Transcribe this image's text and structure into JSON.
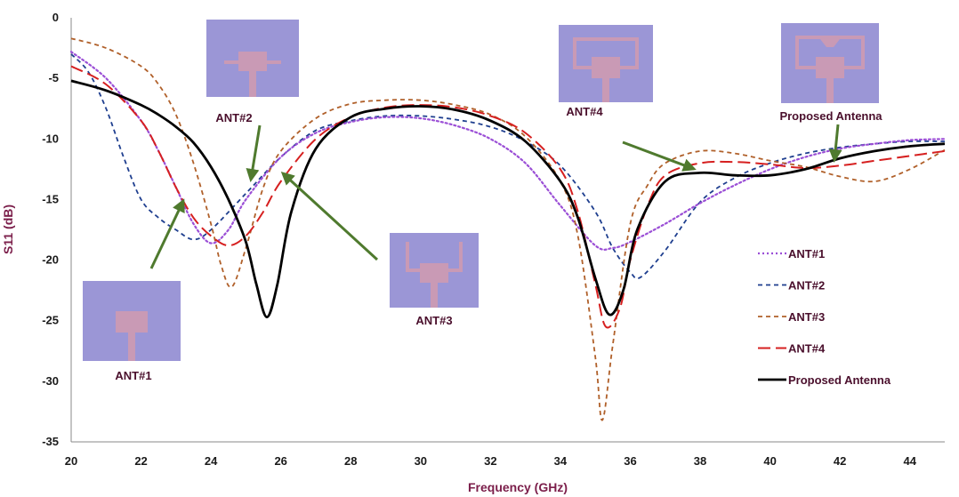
{
  "chart_data": {
    "type": "line",
    "xlabel": "Frequency (GHz)",
    "ylabel": "S11 (dB)",
    "xlim": [
      20,
      45
    ],
    "ylim": [
      -35,
      0
    ],
    "xticks": [
      20,
      22,
      24,
      26,
      28,
      30,
      32,
      34,
      36,
      38,
      40,
      42,
      44
    ],
    "yticks": [
      0,
      -5,
      -10,
      -15,
      -20,
      -25,
      -30,
      -35
    ],
    "grid": false,
    "legend_position": "bottom-right",
    "series": [
      {
        "name": "ANT#1",
        "color": "#9b4fd6",
        "dash": "dotted",
        "x": [
          20,
          21,
          22,
          22.5,
          23,
          23.5,
          24,
          24.5,
          25,
          26,
          27,
          28,
          29,
          30,
          31,
          32,
          33,
          34,
          35,
          35.5,
          36,
          37,
          38,
          39,
          40,
          41,
          42,
          43,
          44,
          45
        ],
        "y": [
          -2.8,
          -5,
          -8.5,
          -11,
          -14,
          -17,
          -18.6,
          -17.5,
          -15,
          -11.5,
          -9.5,
          -8.6,
          -8.2,
          -8.3,
          -8.9,
          -10,
          -12,
          -15.5,
          -18.8,
          -19,
          -18.5,
          -17,
          -15.3,
          -13.8,
          -12.5,
          -11.5,
          -10.8,
          -10.4,
          -10.1,
          -10
        ]
      },
      {
        "name": "ANT#2",
        "color": "#1f3f8f",
        "dash": "dashed",
        "x": [
          20,
          20.5,
          21,
          21.5,
          22,
          22.5,
          23,
          23.5,
          24,
          25,
          26,
          27,
          28,
          29,
          30,
          31,
          32,
          33,
          34,
          35,
          35.5,
          36,
          36.3,
          37,
          38,
          39,
          40,
          41,
          42,
          43,
          44,
          45
        ],
        "y": [
          -3,
          -4.5,
          -7.5,
          -11.5,
          -15,
          -16.5,
          -17.5,
          -18.3,
          -17.5,
          -14.5,
          -11.5,
          -9.3,
          -8.5,
          -8.1,
          -8.1,
          -8.4,
          -9,
          -10.2,
          -12.2,
          -16,
          -19,
          -21,
          -21.4,
          -19.2,
          -15.2,
          -13.2,
          -12,
          -11.2,
          -10.7,
          -10.4,
          -10.2,
          -10.2
        ]
      },
      {
        "name": "ANT#3",
        "color": "#b0602a",
        "dash": "dashed",
        "x": [
          20,
          21,
          22,
          22.5,
          23,
          23.5,
          24,
          24.3,
          24.6,
          25,
          25.5,
          26,
          27,
          28,
          29,
          30,
          31,
          32,
          33,
          34,
          34.5,
          35,
          35.2,
          35.5,
          36,
          36.5,
          37,
          38,
          39,
          40,
          41,
          42,
          43,
          44,
          45
        ],
        "y": [
          -1.7,
          -2.5,
          -4,
          -5.5,
          -8,
          -12,
          -17,
          -20.5,
          -22.2,
          -19,
          -14,
          -11,
          -8.3,
          -7.1,
          -6.8,
          -6.8,
          -7.2,
          -8,
          -9.8,
          -13.5,
          -18,
          -28,
          -33.2,
          -27,
          -17,
          -13.8,
          -12,
          -11,
          -11.2,
          -11.8,
          -12.3,
          -13.1,
          -13.5,
          -12.5,
          -10.9
        ]
      },
      {
        "name": "ANT#4",
        "color": "#d62020",
        "dash": "longdash",
        "x": [
          20,
          21,
          22,
          22.5,
          23,
          23.5,
          24,
          24.5,
          25,
          25.5,
          26,
          27,
          28,
          29,
          30,
          31,
          32,
          33,
          34,
          34.5,
          35,
          35.3,
          35.7,
          36,
          36.5,
          37,
          38,
          39,
          40,
          41,
          42,
          43,
          44,
          45
        ],
        "y": [
          -4,
          -5.5,
          -8.5,
          -11,
          -14,
          -16.5,
          -18,
          -18.8,
          -18,
          -16,
          -13.5,
          -10,
          -8.2,
          -7.4,
          -7.2,
          -7.4,
          -8.1,
          -9.5,
          -12.5,
          -16,
          -22,
          -25.5,
          -24,
          -20,
          -15.5,
          -13,
          -12,
          -11.9,
          -12.1,
          -12.4,
          -12.2,
          -11.8,
          -11.4,
          -11
        ]
      },
      {
        "name": "Proposed Antenna",
        "color": "#000000",
        "dash": "solid",
        "x": [
          20,
          21,
          22,
          22.5,
          23,
          23.5,
          24,
          24.5,
          25,
          25.3,
          25.6,
          25.9,
          26.3,
          27,
          28,
          29,
          30,
          31,
          32,
          33,
          34,
          34.5,
          35,
          35.4,
          35.8,
          36.2,
          37,
          38,
          39,
          40,
          41,
          42,
          43,
          44,
          45
        ],
        "y": [
          -5.2,
          -6,
          -7.2,
          -8,
          -9,
          -10.3,
          -12.3,
          -15,
          -18.5,
          -22,
          -24.7,
          -22,
          -16,
          -10.8,
          -8.2,
          -7.5,
          -7.3,
          -7.6,
          -8.5,
          -10.2,
          -13.5,
          -16.5,
          -21.5,
          -24.5,
          -22.5,
          -17.5,
          -13.5,
          -12.8,
          -13,
          -13,
          -12.5,
          -11.6,
          -11,
          -10.6,
          -10.4
        ]
      }
    ],
    "annotations": [
      {
        "label": "ANT#1"
      },
      {
        "label": "ANT#2"
      },
      {
        "label": "ANT#3"
      },
      {
        "label": "ANT#4"
      },
      {
        "label": "Proposed Antenna"
      }
    ]
  },
  "colors": {
    "inset_bg": "#9b96d6",
    "inset_patch": "#c99ab5",
    "arrow": "#4f7a2e"
  }
}
